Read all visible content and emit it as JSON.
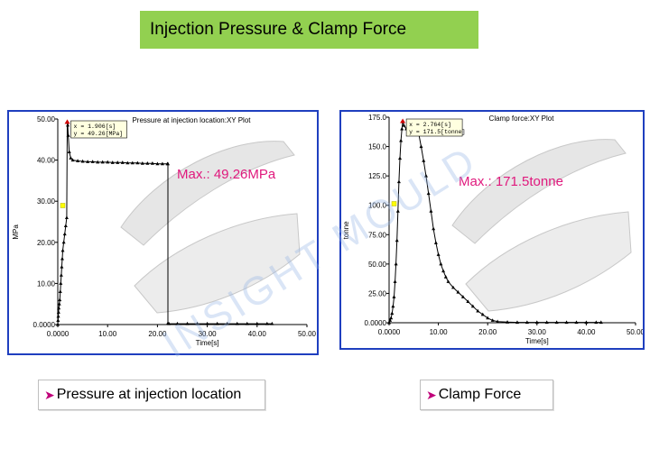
{
  "slide": {
    "title": "Injection Pressure & Clamp Force",
    "watermark": "INSIGHT MOULD",
    "captions": [
      {
        "label": "Pressure at injection location"
      },
      {
        "label": "Clamp Force"
      }
    ]
  },
  "chart_data": [
    {
      "type": "line",
      "title": "Pressure at injection location:XY Plot",
      "xlabel": "Time[s]",
      "ylabel": "MPa",
      "xlim": [
        0,
        50
      ],
      "ylim": [
        0,
        50
      ],
      "x_ticks": [
        "0.0000",
        "10.00",
        "20.00",
        "30.00",
        "40.00",
        "50.00"
      ],
      "y_ticks": [
        "0.0000",
        "10.00",
        "20.00",
        "30.00",
        "40.00",
        "50.00"
      ],
      "annotation": "Max.: 49.26MPa",
      "tooltip": [
        "x = 1.906[s]",
        "y = 49.26[MPa]"
      ],
      "series": [
        {
          "x": [
            0,
            0.05,
            0.1,
            0.15,
            0.2,
            0.3,
            0.4,
            0.5,
            0.6,
            0.7,
            0.8,
            0.9,
            1.0,
            1.2,
            1.4,
            1.6,
            1.8,
            1.906,
            2.0,
            2.1,
            2.3,
            2.6,
            3.0,
            4.0,
            5.0,
            6.0,
            7.0,
            8.0,
            9.0,
            10.0,
            11.0,
            12.0,
            13.0,
            14.0,
            15.0,
            16.0,
            17.0,
            18.0,
            19.0,
            20.0,
            21.0,
            22.0,
            22.1,
            22.1,
            22.3,
            24.0,
            26.0,
            28.0,
            30.0,
            32.0,
            34.0,
            36.0,
            38.0,
            40.0,
            42.0,
            43.0
          ],
          "y": [
            0,
            1,
            2,
            3,
            4,
            5,
            6,
            8,
            10,
            12,
            14,
            16,
            18,
            20,
            22,
            24,
            26,
            49.26,
            48.5,
            46,
            42,
            40.5,
            40,
            39.8,
            39.7,
            39.6,
            39.6,
            39.5,
            39.5,
            39.5,
            39.4,
            39.4,
            39.4,
            39.3,
            39.3,
            39.3,
            39.2,
            39.2,
            39.2,
            39.1,
            39.1,
            39.1,
            39.1,
            0.3,
            0.2,
            0.2,
            0.2,
            0.2,
            0.2,
            0.2,
            0.2,
            0.2,
            0.2,
            0.2,
            0.2,
            0.2
          ]
        }
      ]
    },
    {
      "type": "line",
      "title": "Clamp force:XY Plot",
      "xlabel": "Time[s]",
      "ylabel": "tonne",
      "xlim": [
        0,
        50
      ],
      "ylim": [
        0,
        175
      ],
      "x_ticks": [
        "0.0000",
        "10.00",
        "20.00",
        "30.00",
        "40.00",
        "50.00"
      ],
      "y_ticks": [
        "0.0000",
        "25.00",
        "50.00",
        "75.00",
        "100.0",
        "125.0",
        "150.0",
        "175.0"
      ],
      "annotation": "Max.: 171.5tonne",
      "tooltip": [
        "x = 2.764[s]",
        "y = 171.5[tonne]"
      ],
      "series": [
        {
          "x": [
            0,
            0.2,
            0.4,
            0.6,
            0.8,
            1.0,
            1.2,
            1.4,
            1.6,
            1.8,
            2.0,
            2.2,
            2.4,
            2.6,
            2.764,
            3.0,
            3.5,
            4.0,
            5.0,
            6.0,
            6.5,
            7.0,
            7.5,
            8.0,
            8.5,
            9.0,
            9.5,
            10.0,
            10.5,
            11.0,
            11.5,
            12.0,
            13.0,
            14.0,
            15.0,
            16.0,
            17.0,
            18.0,
            19.0,
            20.0,
            21.0,
            22.0,
            24.0,
            26.0,
            28.0,
            30.0,
            32.0,
            34.0,
            36.0,
            38.0,
            40.0,
            42.0,
            43.0
          ],
          "y": [
            0,
            2,
            4,
            8,
            14,
            22,
            35,
            50,
            70,
            95,
            120,
            140,
            155,
            165,
            171.5,
            168,
            165,
            163,
            162,
            161,
            150,
            138,
            125,
            110,
            95,
            80,
            68,
            58,
            50,
            44,
            39,
            35,
            30,
            26,
            22,
            18,
            14,
            10,
            7,
            4,
            2,
            1,
            0.5,
            0.3,
            0.3,
            0.3,
            0.3,
            0.3,
            0.3,
            0.3,
            0.3,
            0.3,
            0.3
          ]
        }
      ]
    }
  ]
}
